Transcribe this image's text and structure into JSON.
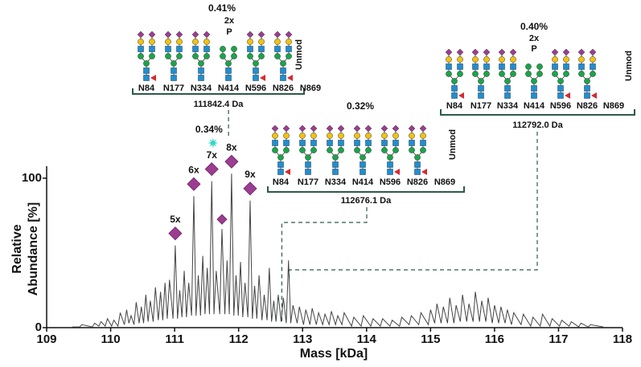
{
  "chart_data": {
    "type": "line",
    "xlabel": "Mass [kDa]",
    "ylabel": [
      "Relative",
      "Abundance [%]"
    ],
    "xlim": [
      109,
      118
    ],
    "xticks": [
      109,
      110,
      111,
      112,
      113,
      114,
      115,
      116,
      117,
      118
    ],
    "ylim": [
      0,
      108
    ],
    "yticks": [
      0,
      100
    ],
    "color": "#444444",
    "x": [
      109.4,
      109.515,
      109.55,
      109.715,
      109.75,
      109.815,
      109.85,
      109.915,
      109.95,
      110.015,
      110.05,
      110.115,
      110.15,
      110.215,
      110.25,
      110.285,
      110.32,
      110.365,
      110.4,
      110.445,
      110.48,
      110.515,
      110.55,
      110.585,
      110.62,
      110.665,
      110.7,
      110.745,
      110.78,
      110.815,
      110.85,
      110.885,
      110.92,
      110.975,
      111.01,
      111.045,
      111.08,
      111.115,
      111.15,
      111.185,
      111.22,
      111.265,
      111.3,
      111.335,
      111.37,
      111.405,
      111.44,
      111.475,
      111.51,
      111.545,
      111.58,
      111.615,
      111.65,
      111.705,
      111.74,
      111.785,
      111.82,
      111.855,
      111.89,
      111.925,
      111.96,
      111.995,
      112.03,
      112.065,
      112.1,
      112.145,
      112.18,
      112.215,
      112.25,
      112.285,
      112.32,
      112.365,
      112.4,
      112.445,
      112.48,
      112.515,
      112.55,
      112.585,
      112.62,
      112.665,
      112.7,
      112.745,
      112.78,
      112.815,
      112.85,
      112.915,
      112.95,
      113.015,
      113.05,
      113.115,
      113.15,
      113.215,
      113.25,
      113.315,
      113.35,
      113.415,
      113.45,
      113.515,
      113.55,
      113.615,
      113.65,
      113.765,
      113.8,
      113.915,
      113.95,
      114.065,
      114.1,
      114.215,
      114.25,
      114.365,
      114.4,
      114.515,
      114.55,
      114.665,
      114.7,
      114.815,
      114.85,
      114.965,
      115.0,
      115.065,
      115.1,
      115.165,
      115.2,
      115.265,
      115.3,
      115.365,
      115.4,
      115.465,
      115.5,
      115.565,
      115.6,
      115.665,
      115.7,
      115.765,
      115.8,
      115.865,
      115.9,
      115.965,
      116.0,
      116.065,
      116.1,
      116.165,
      116.2,
      116.265,
      116.3,
      116.415,
      116.45,
      116.565,
      116.6,
      116.715,
      116.75,
      116.865,
      116.9,
      117.015,
      117.05,
      117.165,
      117.2,
      117.315,
      117.35,
      117.465,
      117.5,
      117.7
    ],
    "values": [
      0.5,
      0.5,
      2,
      0.5,
      3,
      1,
      4,
      1,
      6,
      1,
      5,
      1,
      10,
      2,
      12,
      3,
      8,
      2,
      17,
      3,
      14,
      3,
      22,
      4,
      18,
      4,
      27,
      5,
      24,
      5,
      30,
      6,
      32,
      6,
      55,
      6,
      25,
      7,
      38,
      7,
      30,
      8,
      88,
      8,
      35,
      8,
      48,
      9,
      40,
      9,
      98,
      9,
      38,
      9,
      66,
      9,
      45,
      9,
      103,
      8,
      35,
      8,
      44,
      7,
      30,
      7,
      85,
      6,
      28,
      6,
      35,
      5,
      22,
      5,
      40,
      4,
      18,
      4,
      22,
      4,
      20,
      3,
      45,
      3,
      15,
      3,
      14,
      2,
      12,
      2,
      13,
      2,
      10,
      2,
      9,
      2,
      11,
      2,
      8,
      2,
      10,
      1,
      7,
      1,
      8,
      1,
      6,
      1,
      6,
      1,
      5,
      1,
      7,
      2,
      8,
      2,
      10,
      2,
      12,
      3,
      16,
      3,
      14,
      3,
      20,
      3,
      15,
      4,
      22,
      4,
      16,
      4,
      24,
      4,
      18,
      4,
      20,
      3,
      15,
      3,
      14,
      3,
      12,
      2,
      10,
      2,
      9,
      1,
      7,
      1,
      9,
      1,
      6,
      1,
      5,
      1,
      4,
      0.5,
      3,
      0.5,
      2,
      0.5
    ],
    "peak_annotations": [
      {
        "x": 111.01,
        "y": 55,
        "label": "5x"
      },
      {
        "x": 111.3,
        "y": 88,
        "label": "6x"
      },
      {
        "x": 111.58,
        "y": 98,
        "label": "7x"
      },
      {
        "x": 111.74,
        "y": 66
      },
      {
        "x": 111.89,
        "y": 103,
        "label": "8x"
      },
      {
        "x": 112.18,
        "y": 85,
        "label": "9x"
      }
    ],
    "star": {
      "x": 111.6,
      "label": "0.34%"
    },
    "glycoforms": [
      {
        "percent": "0.41%",
        "notes": [
          "2x",
          "P"
        ],
        "sites": [
          "N84",
          "N177",
          "N334",
          "N414",
          "N596",
          "N826",
          "N869"
        ],
        "unmod": "Unmod",
        "mass": {
          "value": 111.8424,
          "label": "111842.4 Da"
        }
      },
      {
        "percent": "0.32%",
        "sites": [
          "N84",
          "N177",
          "N334",
          "N414",
          "N596",
          "N826",
          "N869"
        ],
        "unmod": "Unmod",
        "mass": {
          "value": 112.6761,
          "label": "112676.1 Da"
        }
      },
      {
        "percent": "0.40%",
        "notes": [
          "2x",
          "P"
        ],
        "sites": [
          "N84",
          "N177",
          "N334",
          "N414",
          "N596",
          "N826",
          "N869"
        ],
        "unmod": "Unmod",
        "mass": {
          "value": 112.792,
          "label": "112792.0 Da"
        }
      }
    ]
  }
}
